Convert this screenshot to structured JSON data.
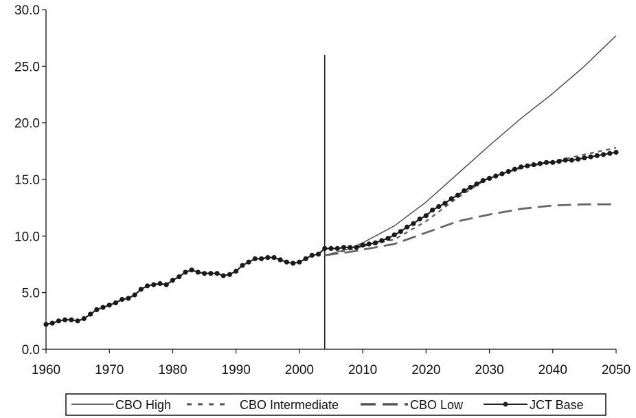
{
  "chart_data": {
    "type": "line",
    "title": "",
    "xlabel": "",
    "ylabel": "",
    "xlim": [
      1960,
      2050
    ],
    "ylim": [
      0,
      30
    ],
    "x_ticks": [
      1960,
      1970,
      1980,
      1990,
      2000,
      2010,
      2020,
      2030,
      2040,
      2050
    ],
    "y_ticks": [
      0,
      5,
      10,
      15,
      20,
      25,
      30
    ],
    "y_tick_labels": [
      "0.0",
      "5.0",
      "10.0",
      "15.0",
      "20.0",
      "25.0",
      "30.0"
    ],
    "grid": false,
    "legend_position": "bottom",
    "vertical_marker_x": 2004,
    "vertical_marker_top": 26,
    "series": [
      {
        "name": "CBO High",
        "style": "thin-solid",
        "x": [
          2004,
          2008,
          2010,
          2015,
          2020,
          2025,
          2030,
          2035,
          2040,
          2045,
          2050
        ],
        "y": [
          8.3,
          8.9,
          9.4,
          10.9,
          13.0,
          15.5,
          18.0,
          20.4,
          22.6,
          25.0,
          27.7
        ]
      },
      {
        "name": "CBO Intermediate",
        "style": "short-dash",
        "x": [
          2004,
          2008,
          2010,
          2015,
          2020,
          2025,
          2030,
          2035,
          2040,
          2045,
          2050
        ],
        "y": [
          8.3,
          8.8,
          9.1,
          9.7,
          11.3,
          13.4,
          15.2,
          16.0,
          16.6,
          17.2,
          17.8
        ]
      },
      {
        "name": "CBO Low",
        "style": "long-dash",
        "x": [
          2004,
          2008,
          2010,
          2015,
          2020,
          2025,
          2030,
          2035,
          2040,
          2045,
          2050
        ],
        "y": [
          8.3,
          8.6,
          8.8,
          9.3,
          10.3,
          11.3,
          11.9,
          12.4,
          12.7,
          12.8,
          12.8
        ]
      },
      {
        "name": "JCT Base",
        "style": "solid-dots",
        "x": [
          1960,
          1961,
          1962,
          1963,
          1964,
          1965,
          1966,
          1967,
          1968,
          1969,
          1970,
          1971,
          1972,
          1973,
          1974,
          1975,
          1976,
          1977,
          1978,
          1979,
          1980,
          1981,
          1982,
          1983,
          1984,
          1985,
          1986,
          1987,
          1988,
          1989,
          1990,
          1991,
          1992,
          1993,
          1994,
          1995,
          1996,
          1997,
          1998,
          1999,
          2000,
          2001,
          2002,
          2003,
          2004,
          2005,
          2006,
          2007,
          2008,
          2009,
          2010,
          2011,
          2012,
          2013,
          2014,
          2015,
          2016,
          2017,
          2018,
          2019,
          2020,
          2021,
          2022,
          2023,
          2024,
          2025,
          2026,
          2027,
          2028,
          2029,
          2030,
          2031,
          2032,
          2033,
          2034,
          2035,
          2036,
          2037,
          2038,
          2039,
          2040,
          2041,
          2042,
          2043,
          2044,
          2045,
          2046,
          2047,
          2048,
          2049,
          2050
        ],
        "y": [
          2.2,
          2.3,
          2.5,
          2.6,
          2.6,
          2.5,
          2.7,
          3.1,
          3.5,
          3.7,
          3.9,
          4.1,
          4.4,
          4.5,
          4.8,
          5.3,
          5.6,
          5.7,
          5.8,
          5.7,
          6.1,
          6.4,
          6.8,
          7.0,
          6.8,
          6.7,
          6.7,
          6.7,
          6.5,
          6.6,
          6.9,
          7.4,
          7.7,
          8.0,
          8.0,
          8.1,
          8.1,
          7.9,
          7.7,
          7.6,
          7.7,
          8.0,
          8.3,
          8.4,
          8.9,
          8.9,
          8.9,
          9.0,
          9.0,
          9.0,
          9.2,
          9.3,
          9.4,
          9.6,
          9.8,
          10.1,
          10.4,
          10.8,
          11.1,
          11.5,
          11.8,
          12.3,
          12.6,
          12.9,
          13.3,
          13.6,
          14.0,
          14.3,
          14.6,
          14.9,
          15.1,
          15.3,
          15.5,
          15.7,
          15.9,
          16.1,
          16.2,
          16.3,
          16.4,
          16.5,
          16.5,
          16.6,
          16.7,
          16.7,
          16.8,
          16.9,
          17.0,
          17.1,
          17.2,
          17.3,
          17.4
        ]
      }
    ]
  },
  "legend": {
    "items": [
      "CBO High",
      "CBO Intermediate",
      "CBO Low",
      "JCT Base"
    ]
  }
}
